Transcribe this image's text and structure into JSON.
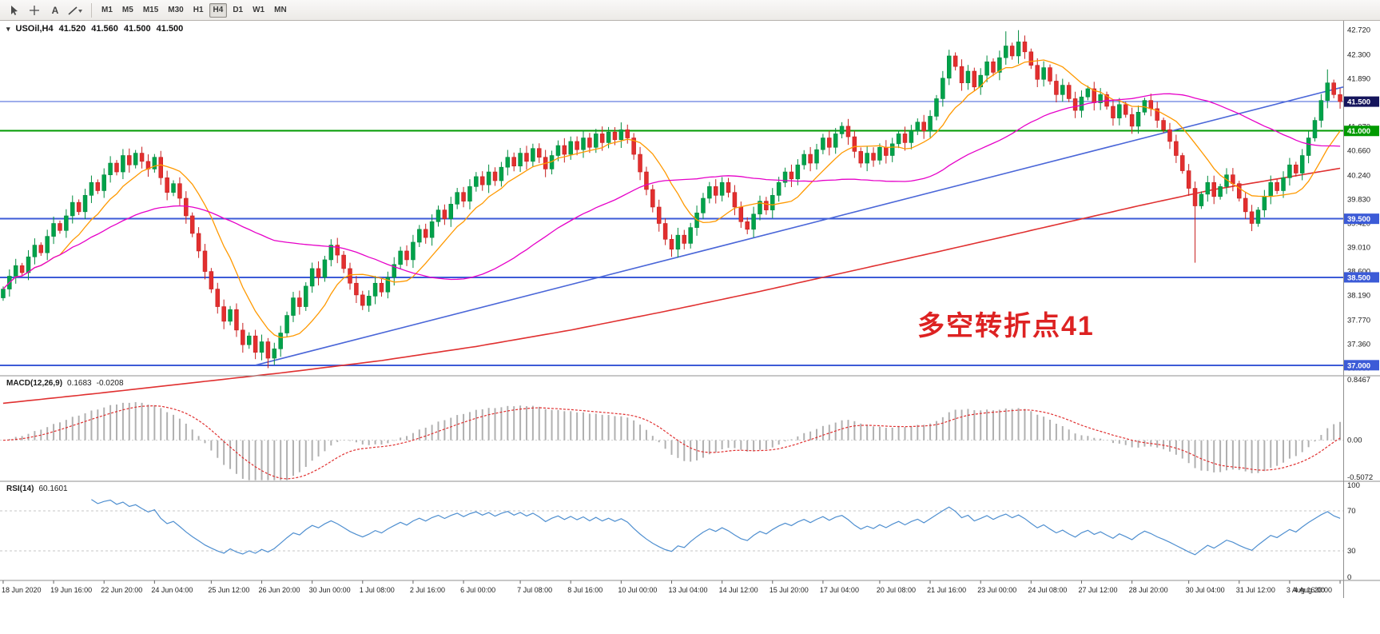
{
  "toolbar": {
    "tools": [
      {
        "name": "cursor-tool"
      },
      {
        "name": "crosshair-tool"
      },
      {
        "name": "text-annotation-tool",
        "label": "A"
      },
      {
        "name": "line-studies-dropdown"
      }
    ],
    "timeframes": [
      {
        "label": "M1"
      },
      {
        "label": "M5"
      },
      {
        "label": "M15"
      },
      {
        "label": "M30"
      },
      {
        "label": "H1"
      },
      {
        "label": "H4",
        "active": true
      },
      {
        "label": "D1"
      },
      {
        "label": "W1"
      },
      {
        "label": "MN"
      }
    ]
  },
  "chart": {
    "symbol_line": {
      "toggle": "▾",
      "symbol": "USOil,H4",
      "open": "41.520",
      "high": "41.560",
      "low": "41.500",
      "close": "41.500"
    },
    "annotation": {
      "text": "多空转折点41",
      "color": "#dd2222"
    }
  },
  "chart_data": {
    "type": "candlestick",
    "title": "USOil H4 with MACD(12,26,9) and RSI(14)",
    "x_labels": [
      "18 Jun 2020",
      "19 Jun 16:00",
      "22 Jun 20:00",
      "24 Jun 04:00",
      "25 Jun 12:00",
      "26 Jun 20:00",
      "30 Jun 00:00",
      "1 Jul 08:00",
      "2 Jul 16:00",
      "6 Jul 00:00",
      "7 Jul 08:00",
      "8 Jul 16:00",
      "10 Jul 00:00",
      "13 Jul 04:00",
      "14 Jul 12:00",
      "15 Jul 20:00",
      "17 Jul 04:00",
      "20 Jul 08:00",
      "21 Jul 16:00",
      "23 Jul 00:00",
      "24 Jul 08:00",
      "27 Jul 12:00",
      "28 Jul 20:00",
      "30 Jul 04:00",
      "31 Jul 12:00",
      "3 Aug 16:00",
      "4 Aug 20:00"
    ],
    "first_open": 38.15,
    "closes": [
      38.3,
      38.52,
      38.7,
      38.58,
      38.85,
      39.05,
      38.92,
      39.2,
      39.42,
      39.3,
      39.55,
      39.78,
      39.62,
      39.9,
      40.12,
      39.98,
      40.25,
      40.45,
      40.3,
      40.58,
      40.42,
      40.62,
      40.48,
      40.35,
      40.55,
      40.2,
      39.95,
      40.1,
      39.85,
      39.55,
      39.25,
      38.95,
      38.6,
      38.3,
      38.0,
      37.75,
      37.95,
      37.6,
      37.35,
      37.5,
      37.22,
      37.4,
      37.12,
      37.28,
      37.55,
      37.85,
      38.15,
      38.0,
      38.35,
      38.65,
      38.5,
      38.8,
      39.05,
      38.88,
      38.65,
      38.4,
      38.2,
      38.02,
      38.18,
      38.4,
      38.25,
      38.5,
      38.72,
      38.95,
      38.8,
      39.1,
      39.32,
      39.18,
      39.45,
      39.65,
      39.5,
      39.75,
      39.95,
      39.8,
      40.05,
      40.22,
      40.08,
      40.3,
      40.15,
      40.38,
      40.55,
      40.4,
      40.62,
      40.48,
      40.7,
      40.55,
      40.35,
      40.58,
      40.75,
      40.6,
      40.82,
      40.68,
      40.88,
      40.72,
      40.95,
      40.8,
      40.98,
      40.85,
      41.02,
      40.88,
      40.6,
      40.3,
      40.0,
      39.7,
      39.42,
      39.15,
      38.98,
      39.22,
      39.08,
      39.35,
      39.6,
      39.85,
      40.05,
      39.9,
      40.12,
      39.95,
      39.7,
      39.45,
      39.32,
      39.58,
      39.8,
      39.65,
      39.9,
      40.12,
      40.3,
      40.18,
      40.42,
      40.6,
      40.45,
      40.68,
      40.88,
      40.72,
      40.95,
      41.08,
      40.9,
      40.65,
      40.45,
      40.62,
      40.5,
      40.72,
      40.58,
      40.78,
      40.95,
      40.8,
      41.0,
      41.15,
      41.0,
      41.25,
      41.55,
      41.9,
      42.28,
      42.1,
      41.82,
      42.02,
      41.75,
      41.95,
      42.18,
      42.0,
      42.25,
      42.45,
      42.28,
      42.52,
      42.35,
      42.12,
      41.88,
      42.08,
      41.85,
      41.62,
      41.78,
      41.55,
      41.35,
      41.58,
      41.72,
      41.48,
      41.62,
      41.42,
      41.22,
      41.45,
      41.28,
      41.08,
      41.32,
      41.52,
      41.38,
      41.18,
      41.02,
      40.82,
      40.58,
      40.32,
      40.02,
      39.72,
      39.92,
      40.12,
      39.88,
      40.05,
      40.25,
      40.1,
      39.85,
      39.62,
      39.42,
      39.65,
      39.88,
      40.12,
      39.98,
      40.2,
      40.42,
      40.28,
      40.58,
      40.88,
      41.18,
      41.52,
      41.82,
      41.62,
      41.5
    ],
    "wick_overrides": {
      "42": {
        "low": 36.95
      },
      "106": {
        "low": 38.85
      },
      "159": {
        "high": 42.7
      },
      "161": {
        "high": 42.72
      },
      "189": {
        "low": 38.75
      },
      "210": {
        "high": 42.05
      }
    },
    "candle_colors": {
      "up": "#00a24a",
      "up_edge": "#008b3e",
      "down": "#e22f2f",
      "down_edge": "#c81f1f"
    },
    "y_axis": {
      "min": 36.82,
      "max": 42.88,
      "ticks": [
        "42.720",
        "42.300",
        "41.890",
        "41.480",
        "41.070",
        "40.660",
        "40.240",
        "39.830",
        "39.420",
        "39.010",
        "38.600",
        "38.190",
        "37.770",
        "37.360",
        "36.950"
      ]
    },
    "levels": [
      {
        "price": 41.5,
        "label": "41.500",
        "color": "#3c5bd7",
        "line_width": 1,
        "tag_bg": "#15155c"
      },
      {
        "price": 41.0,
        "label": "41.000",
        "color": "#009a00",
        "line_width": 2,
        "tag_bg": "#009a00"
      },
      {
        "price": 39.5,
        "label": "39.500",
        "color": "#3c5bd7",
        "line_width": 2,
        "tag_bg": "#3c5bd7"
      },
      {
        "price": 38.5,
        "label": "38.500",
        "color": "#3c5bd7",
        "line_width": 2,
        "tag_bg": "#3c5bd7"
      },
      {
        "price": 37.0,
        "label": "37.000",
        "color": "#3c5bd7",
        "line_width": 2,
        "tag_bg": "#3c5bd7"
      }
    ],
    "trendline": {
      "from": [
        40,
        37.0
      ],
      "to": [
        213,
        41.75
      ],
      "color": "#4a66d8"
    },
    "moving_averages": [
      {
        "type": "sma",
        "period": 10,
        "color": "#ff9900"
      },
      {
        "type": "sma",
        "period": 44,
        "color": "#e600c8"
      }
    ],
    "slow_ma": {
      "color": "#e03030",
      "points": [
        [
          0,
          36.35
        ],
        [
          15,
          36.52
        ],
        [
          30,
          36.7
        ],
        [
          45,
          36.88
        ],
        [
          60,
          37.08
        ],
        [
          75,
          37.32
        ],
        [
          90,
          37.6
        ],
        [
          105,
          37.92
        ],
        [
          120,
          38.26
        ],
        [
          135,
          38.62
        ],
        [
          150,
          38.98
        ],
        [
          165,
          39.35
        ],
        [
          180,
          39.72
        ],
        [
          192,
          40.0
        ],
        [
          202,
          40.18
        ],
        [
          213,
          40.38
        ]
      ]
    },
    "macd": {
      "label": "MACD(12,26,9)",
      "value_main": "0.1683",
      "value_signal": "-0.0208",
      "fast": 12,
      "slow": 26,
      "signal_period": 9,
      "axis_labels": [
        "0.8467",
        "0.00",
        "-0.5072"
      ],
      "range": [
        -0.56,
        0.88
      ],
      "hist_color": "#b0b0b0",
      "signal_color": "#e03030"
    },
    "rsi": {
      "label": "RSI(14)",
      "value": "60.1601",
      "period": 14,
      "axis_labels": [
        "100",
        "70",
        "30",
        "0"
      ],
      "levels": [
        70,
        30
      ],
      "line_color": "#4f8fd0"
    }
  }
}
